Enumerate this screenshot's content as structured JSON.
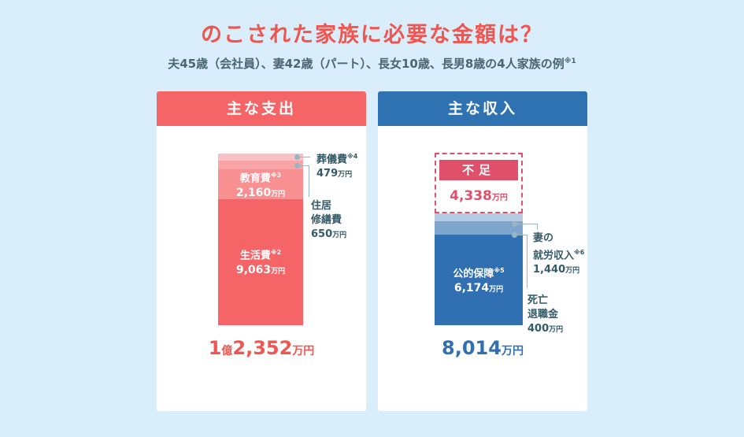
{
  "title": "のこされた家族に必要な金額は？",
  "subtitle": {
    "text": "夫45歳（会社員）、妻42歳（パート）、長女10歳、長男8歳の4人家族の例",
    "note": "※1"
  },
  "expenses": {
    "header": "主な支出",
    "items": [
      {
        "name": "葬儀費",
        "note": "※4",
        "value": "479",
        "unit": "万円"
      },
      {
        "name_line1": "住居",
        "name_line2": "修繕費",
        "value": "650",
        "unit": "万円"
      },
      {
        "name": "教育費",
        "note": "※3",
        "value": "2,160",
        "unit": "万円"
      },
      {
        "name": "生活費",
        "note": "※2",
        "value": "9,063",
        "unit": "万円"
      }
    ],
    "total": {
      "oku": "1",
      "oku_label": "億",
      "value": "2,352",
      "unit": "万円"
    }
  },
  "income": {
    "header": "主な収入",
    "shortfall": {
      "label": "不足",
      "value": "4,338",
      "unit": "万円"
    },
    "items": [
      {
        "name_line1": "妻の",
        "name_line2": "就労収入",
        "note": "※6",
        "value": "1,440",
        "unit": "万円"
      },
      {
        "name_line1": "死亡",
        "name_line2": "退職金",
        "value": "400",
        "unit": "万円"
      },
      {
        "name": "公的保障",
        "note": "※5",
        "value": "6,174",
        "unit": "万円"
      }
    ],
    "total": {
      "value": "8,014",
      "unit": "万円"
    }
  },
  "colors": {
    "background": "#d9eefa",
    "expense_red": "#f56466",
    "income_blue": "#2f72b2",
    "shortfall": "#e0506a"
  }
}
